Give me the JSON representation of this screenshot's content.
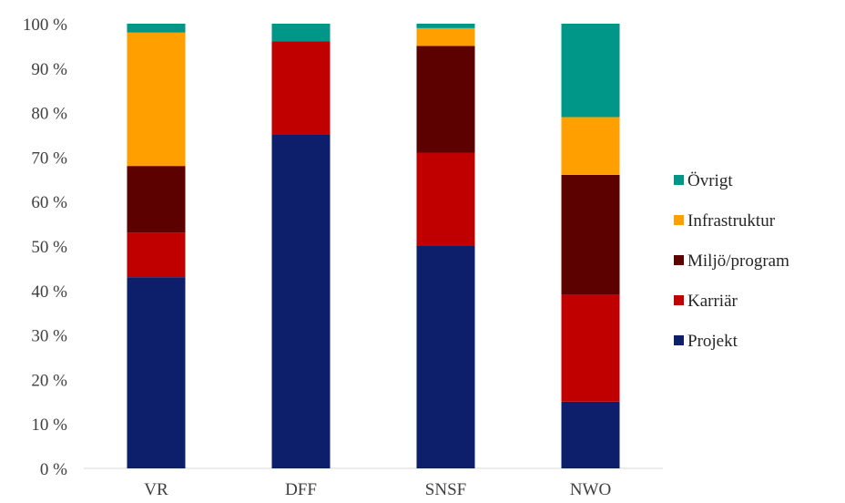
{
  "chart_data": {
    "type": "bar",
    "stacked": true,
    "categories": [
      "VR",
      "DFF",
      "SNSF",
      "NWO"
    ],
    "series": [
      {
        "name": "Projekt",
        "color": "#0d1f6b",
        "values": [
          43,
          75,
          50,
          15
        ]
      },
      {
        "name": "Karriär",
        "color": "#c00000",
        "values": [
          10,
          21,
          21,
          24
        ]
      },
      {
        "name": "Miljö/program",
        "color": "#5c0000",
        "values": [
          15,
          0,
          24,
          27
        ]
      },
      {
        "name": "Infrastruktur",
        "color": "#ff9f00",
        "values": [
          30,
          0,
          4,
          13
        ]
      },
      {
        "name": "Övrigt",
        "color": "#009688",
        "values": [
          2,
          4,
          1,
          21
        ]
      }
    ],
    "ylim": [
      0,
      100
    ],
    "ytick_step": 10,
    "ytick_suffix": " %",
    "grid": false,
    "legend_position": "right",
    "legend_order": [
      "Övrigt",
      "Infrastruktur",
      "Miljö/program",
      "Karriär",
      "Projekt"
    ]
  }
}
